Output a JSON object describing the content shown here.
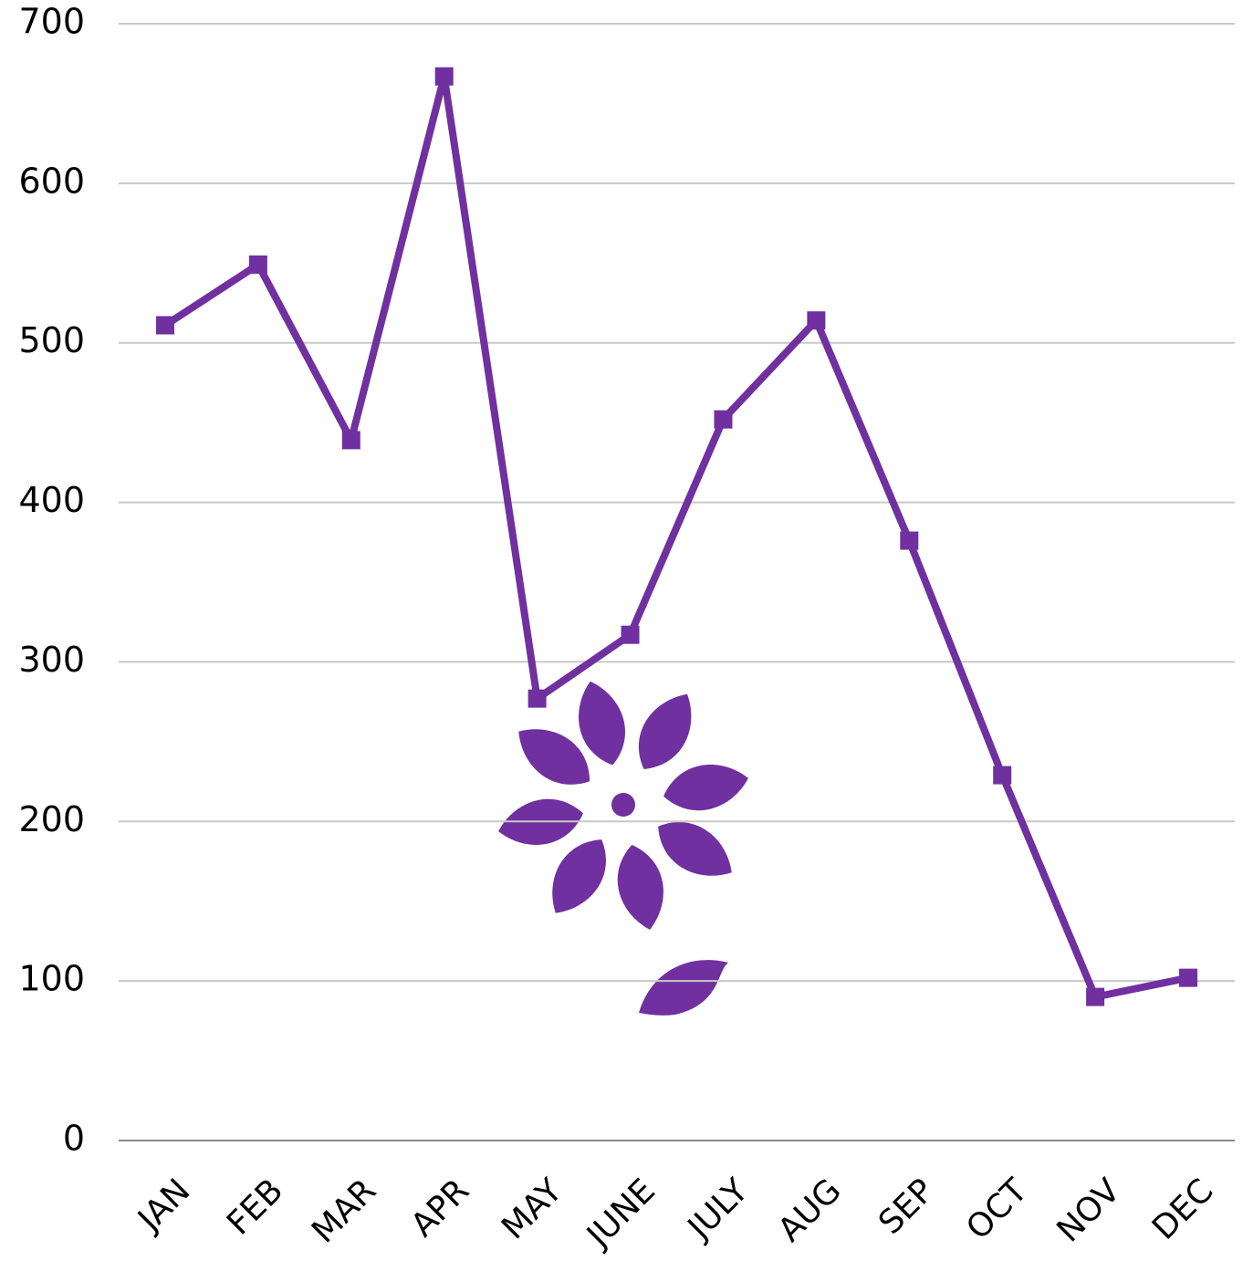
{
  "chart_data": {
    "type": "line",
    "categories": [
      "JAN",
      "FEB",
      "MAR",
      "APR",
      "MAY",
      "JUNE",
      "JULY",
      "AUG",
      "SEP",
      "OCT",
      "NOV",
      "DEC"
    ],
    "values": [
      511,
      549,
      439,
      667,
      277,
      317,
      452,
      514,
      376,
      229,
      90,
      102
    ],
    "color": "#7030a0",
    "ylim": [
      0,
      700
    ],
    "yticks": [
      0,
      100,
      200,
      300,
      400,
      500,
      600,
      700
    ],
    "grid": true
  }
}
